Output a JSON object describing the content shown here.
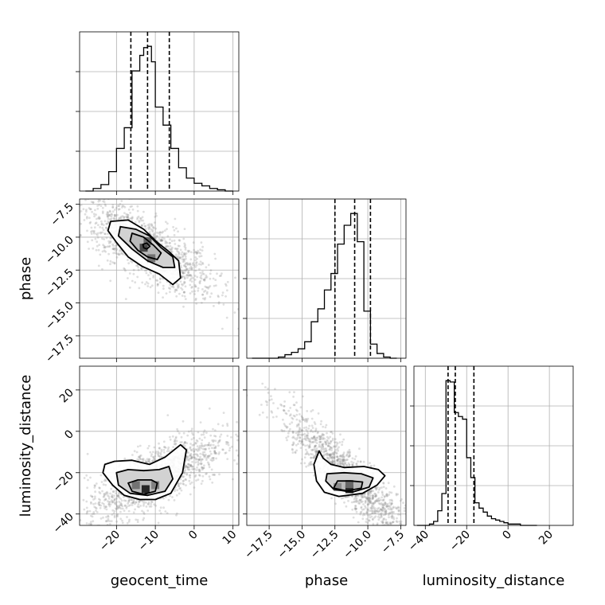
{
  "chart_data": {
    "type": "corner",
    "parameters": [
      "geocent_time",
      "phase",
      "luminosity_distance"
    ],
    "grid": true,
    "ranges": {
      "geocent_time": [
        -29.5,
        11.5
      ],
      "phase": [
        -19.2,
        -7.1
      ],
      "luminosity_distance": [
        -45.5,
        31.5
      ]
    },
    "ticks": {
      "geocent_time": {
        "values": [
          -20,
          -10,
          0,
          10
        ],
        "labels": [
          "−20",
          "−10",
          "0",
          "10"
        ]
      },
      "phase": {
        "values": [
          -17.5,
          -15.0,
          -12.5,
          -10.0,
          -7.5
        ],
        "labels": [
          "−17.5",
          "−15.0",
          "−12.5",
          "−10.0",
          "−7.5"
        ]
      },
      "luminosity_distance": {
        "values": [
          -40,
          -20,
          0,
          20
        ],
        "labels": [
          "−40",
          "−20",
          "0",
          "20"
        ]
      }
    },
    "quantiles": {
      "geocent_time": [
        -16.3,
        -12.0,
        -6.4
      ],
      "phase": [
        -12.5,
        -11.0,
        -9.8
      ],
      "luminosity_distance": [
        -29.0,
        -25.5,
        -16.5
      ]
    },
    "histograms": {
      "geocent_time": {
        "edges": [
          -28,
          -26,
          -24,
          -22,
          -20,
          -18,
          -16,
          -14,
          -13,
          -12,
          -11,
          -10,
          -8,
          -6,
          -4,
          -2,
          0,
          2,
          4,
          6,
          8,
          10
        ],
        "counts": [
          0,
          2,
          5,
          15,
          33,
          49,
          93,
          105,
          111,
          112,
          100,
          65,
          51,
          33,
          18,
          10,
          6,
          4,
          2,
          1,
          0
        ]
      },
      "phase": {
        "edges": [
          -18.8,
          -18.3,
          -17.8,
          -17.3,
          -16.8,
          -16.3,
          -15.8,
          -15.3,
          -14.8,
          -14.3,
          -13.8,
          -13.3,
          -12.8,
          -12.3,
          -11.8,
          -11.3,
          -10.8,
          -10.3,
          -9.8,
          -9.3,
          -8.8,
          -8.3,
          -7.8
        ],
        "counts": [
          0,
          0,
          0,
          0,
          1,
          3,
          5,
          8,
          14,
          31,
          42,
          58,
          72,
          97,
          113,
          123,
          99,
          40,
          12,
          4,
          1,
          0
        ]
      },
      "luminosity_distance": {
        "edges": [
          -44,
          -42,
          -40,
          -38,
          -36,
          -34,
          -32,
          -30,
          -28,
          -26,
          -24,
          -22,
          -20,
          -18,
          -16,
          -14,
          -12,
          -10,
          -8,
          -6,
          -4,
          -2,
          0,
          2,
          4,
          6,
          8,
          10,
          12,
          14
        ],
        "counts": [
          0,
          0,
          0,
          1,
          3,
          11,
          24,
          109,
          108,
          85,
          82,
          80,
          51,
          36,
          17,
          13,
          10,
          7,
          5,
          4,
          3,
          2,
          1,
          1,
          1,
          0,
          0,
          0,
          0
        ]
      }
    },
    "pairs": [
      {
        "x": "geocent_time",
        "y": "phase",
        "density_cells": [
          {
            "x": -13,
            "y": -10.8,
            "level": 0.72
          },
          {
            "x": -11,
            "y": -11.6,
            "level": 0.55
          },
          {
            "x": -12,
            "y": -10.3,
            "level": 0.6
          }
        ],
        "contours": [
          [
            [
              -21.5,
              -8.8
            ],
            [
              -17,
              -8.7
            ],
            [
              -13,
              -9.4
            ],
            [
              -9.5,
              -10.4
            ],
            [
              -6.5,
              -11.1
            ],
            [
              -4,
              -11.8
            ],
            [
              -3.5,
              -13.1
            ],
            [
              -5.5,
              -13.6
            ],
            [
              -9,
              -12.8
            ],
            [
              -13.5,
              -12.2
            ],
            [
              -17,
              -11.5
            ],
            [
              -20,
              -10.4
            ],
            [
              -22.2,
              -9.5
            ]
          ],
          [
            [
              -19,
              -9.2
            ],
            [
              -15,
              -9.4
            ],
            [
              -11.5,
              -9.9
            ],
            [
              -8.5,
              -10.8
            ],
            [
              -5.5,
              -11.5
            ],
            [
              -5,
              -12.3
            ],
            [
              -8,
              -12.3
            ],
            [
              -12,
              -11.8
            ],
            [
              -16,
              -10.9
            ],
            [
              -19.5,
              -9.9
            ]
          ],
          [
            [
              -16,
              -9.7
            ],
            [
              -13,
              -10.0
            ],
            [
              -10.5,
              -10.6
            ],
            [
              -8.5,
              -11.2
            ],
            [
              -9.5,
              -11.7
            ],
            [
              -12,
              -11.5
            ],
            [
              -14.5,
              -11.0
            ],
            [
              -16.5,
              -10.3
            ]
          ],
          [
            [
              -13.2,
              -10.55
            ],
            [
              -12.2,
              -10.45
            ],
            [
              -11.4,
              -10.7
            ],
            [
              -12.2,
              -10.9
            ],
            [
              -13,
              -10.8
            ]
          ]
        ],
        "scatter": {
          "x_range": [
            -29,
            11
          ],
          "y_range": [
            -19,
            -7.3
          ],
          "center": [
            -12.5,
            -10.8
          ],
          "slope": -0.16
        }
      },
      {
        "x": "geocent_time",
        "y": "luminosity_distance",
        "density_cells": [
          {
            "x": -12.5,
            "y": -28,
            "level": 0.85
          },
          {
            "x": -15,
            "y": -26,
            "level": 0.55
          },
          {
            "x": -10,
            "y": -26,
            "level": 0.5
          }
        ],
        "contours": [
          [
            [
              -23,
              -16
            ],
            [
              -20.5,
              -14.5
            ],
            [
              -16,
              -14
            ],
            [
              -11.5,
              -16
            ],
            [
              -7.5,
              -12.5
            ],
            [
              -3.5,
              -6.5
            ],
            [
              -2,
              -9
            ],
            [
              -3,
              -20
            ],
            [
              -6,
              -30
            ],
            [
              -10,
              -33
            ],
            [
              -14,
              -33
            ],
            [
              -18,
              -31
            ],
            [
              -21,
              -26
            ],
            [
              -23.5,
              -20
            ]
          ],
          [
            [
              -20,
              -20
            ],
            [
              -17,
              -18.5
            ],
            [
              -13,
              -19
            ],
            [
              -9,
              -18.5
            ],
            [
              -6.5,
              -17
            ],
            [
              -5.5,
              -23
            ],
            [
              -7.5,
              -29
            ],
            [
              -12,
              -31
            ],
            [
              -16.5,
              -30
            ],
            [
              -19.5,
              -26
            ]
          ],
          [
            [
              -17,
              -25
            ],
            [
              -14.5,
              -23.5
            ],
            [
              -11,
              -23.5
            ],
            [
              -9.5,
              -25
            ],
            [
              -10,
              -29
            ],
            [
              -13,
              -30.5
            ],
            [
              -16,
              -29
            ]
          ]
        ],
        "scatter": {
          "x_range": [
            -29,
            11
          ],
          "y_range": [
            -45,
            30
          ],
          "center": [
            -10,
            -22
          ],
          "slope": 0.9
        }
      },
      {
        "x": "phase",
        "y": "luminosity_distance",
        "density_cells": [
          {
            "x": -11.4,
            "y": -28,
            "level": 0.85
          },
          {
            "x": -11.4,
            "y": -25.5,
            "level": 0.6
          },
          {
            "x": -12.3,
            "y": -27,
            "level": 0.45
          }
        ],
        "contours": [
          [
            [
              -13.7,
              -9.5
            ],
            [
              -13.4,
              -13
            ],
            [
              -12.8,
              -16
            ],
            [
              -11.8,
              -17.5
            ],
            [
              -10.3,
              -17
            ],
            [
              -9.2,
              -18.5
            ],
            [
              -8.7,
              -21.5
            ],
            [
              -9.3,
              -26
            ],
            [
              -10.4,
              -30
            ],
            [
              -12.2,
              -31.5
            ],
            [
              -13.3,
              -29.5
            ],
            [
              -13.9,
              -24
            ],
            [
              -14.1,
              -16
            ]
          ],
          [
            [
              -13.1,
              -20.5
            ],
            [
              -11.8,
              -20
            ],
            [
              -10.5,
              -20.5
            ],
            [
              -9.6,
              -22.5
            ],
            [
              -9.9,
              -27
            ],
            [
              -11.2,
              -29.5
            ],
            [
              -12.6,
              -28
            ],
            [
              -13.2,
              -24
            ]
          ],
          [
            [
              -12.3,
              -24
            ],
            [
              -11.3,
              -24
            ],
            [
              -10.4,
              -24.5
            ],
            [
              -10.5,
              -27.5
            ],
            [
              -11.6,
              -28.8
            ],
            [
              -12.6,
              -27.5
            ]
          ]
        ],
        "scatter": {
          "x_range": [
            -18.5,
            -7.3
          ],
          "y_range": [
            -45,
            30
          ],
          "center": [
            -11.5,
            -22
          ],
          "slope": -7.0
        }
      }
    ]
  }
}
